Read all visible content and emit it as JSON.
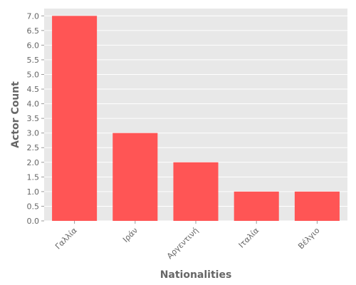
{
  "chart_data": {
    "type": "bar",
    "title": "",
    "xlabel": "Nationalities",
    "ylabel": "Actor Count",
    "categories": [
      "Γαλλία",
      "Ιράν",
      "Αργεντινή",
      "Ιταλία",
      "Βέλγιο"
    ],
    "values": [
      7,
      3,
      2,
      1,
      1
    ],
    "ylim": [
      0,
      7.25
    ],
    "yticks": [
      0.0,
      0.5,
      1.0,
      1.5,
      2.0,
      2.5,
      3.0,
      3.5,
      4.0,
      4.5,
      5.0,
      5.5,
      6.0,
      6.5,
      7.0
    ],
    "ytick_labels": [
      "0.0",
      "0.5",
      "1.0",
      "1.5",
      "2.0",
      "2.5",
      "3.0",
      "3.5",
      "4.0",
      "4.5",
      "5.0",
      "5.5",
      "6.0",
      "6.5",
      "7.0"
    ],
    "grid": true,
    "legend": "none",
    "colors": {
      "bar": "#ff5555",
      "plot_background": "#e8e8e8",
      "gridline": "#ffffff",
      "text": "#666666"
    }
  }
}
